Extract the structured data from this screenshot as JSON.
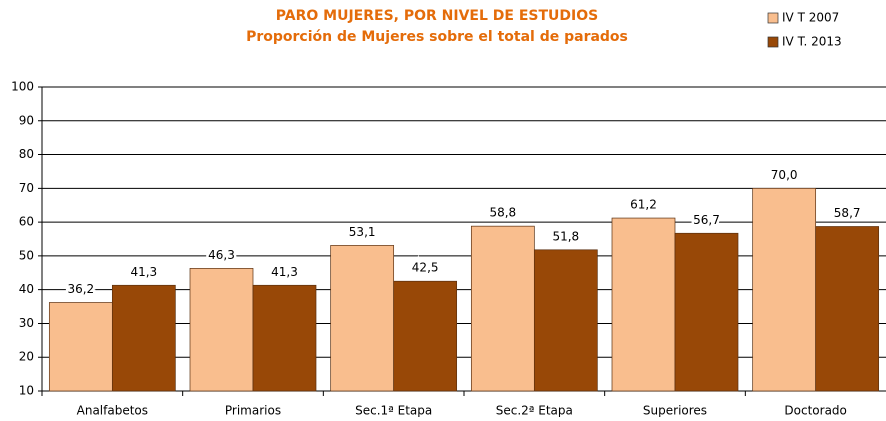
{
  "chart_data": {
    "type": "bar",
    "title": "PARO MUJERES, POR NIVEL DE ESTUDIOS",
    "subtitle": "Proporción de Mujeres sobre el total de parados",
    "categories": [
      "Analfabetos",
      "Primarios",
      "Sec.1ª Etapa",
      "Sec.2ª Etapa",
      "Superiores",
      "Doctorado"
    ],
    "series": [
      {
        "name": "IV T 2007",
        "color": "#f9be8e",
        "values": [
          36.2,
          46.3,
          53.1,
          58.8,
          61.2,
          70.0
        ],
        "value_labels": [
          "36,2",
          "46,3",
          "53,1",
          "58,8",
          "61,2",
          "70,0"
        ]
      },
      {
        "name": "IV T. 2013",
        "color": "#984807",
        "values": [
          41.3,
          41.3,
          42.5,
          51.8,
          56.7,
          58.7
        ],
        "value_labels": [
          "41,3",
          "41,3",
          "42,5",
          "51,8",
          "56,7",
          "58,7"
        ]
      }
    ],
    "ylim": [
      10,
      100
    ],
    "yticks": [
      10,
      20,
      30,
      40,
      50,
      60,
      70,
      80,
      90,
      100
    ],
    "grid": true,
    "legend": "top-right"
  }
}
